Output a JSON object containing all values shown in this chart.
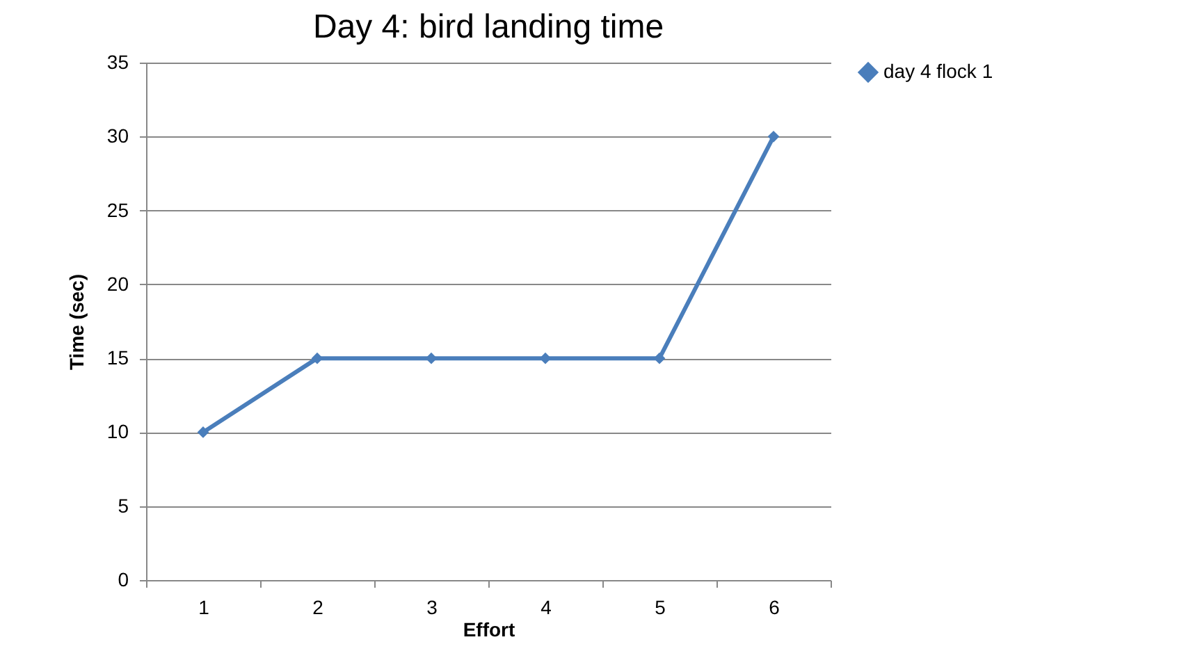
{
  "chart_data": {
    "type": "line",
    "title": "Day 4: bird landing time",
    "xlabel": "Effort",
    "ylabel": "Time (sec)",
    "categories": [
      "1",
      "2",
      "3",
      "4",
      "5",
      "6"
    ],
    "series": [
      {
        "name": "day 4 flock 1",
        "color": "#4a7ebb",
        "values": [
          10,
          15,
          15,
          15,
          15,
          30
        ]
      }
    ],
    "ylim": [
      0,
      35
    ],
    "yticks": [
      0,
      5,
      10,
      15,
      20,
      25,
      30,
      35
    ],
    "grid": "y",
    "legend": "right",
    "marker": "diamond",
    "line_style": "solid"
  }
}
